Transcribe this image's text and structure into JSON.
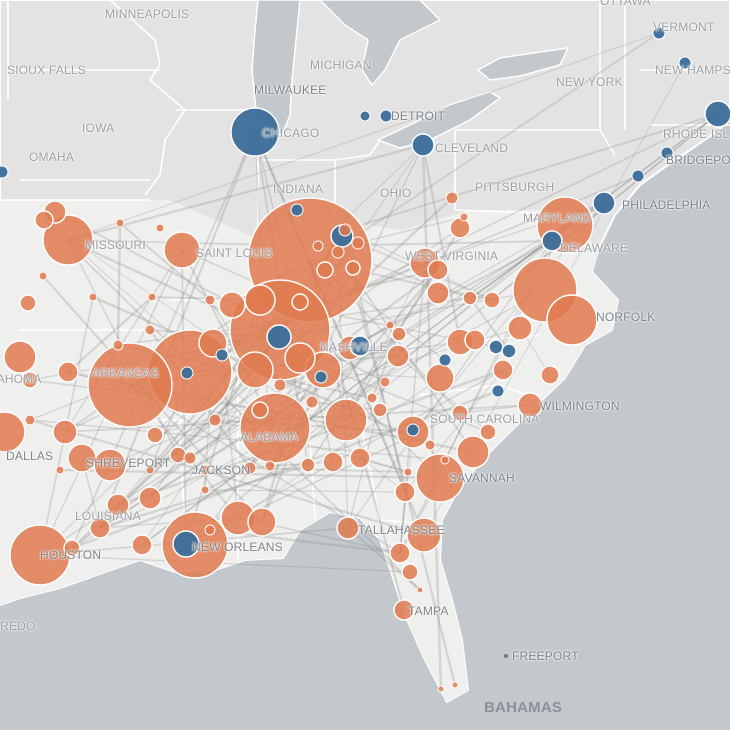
{
  "map": {
    "colors": {
      "water": "#c3c8cd",
      "land_north": "#e3e3e3",
      "land_south": "#efefee",
      "border": "#ffffff",
      "flow_lines": "#8c8c8c",
      "marker_blue": "#3b6e99",
      "marker_orange": "#e07a4f"
    },
    "labels": {
      "ottawa": "OTTAWA",
      "minneapolis": "MINNEAPOLIS",
      "vermont": "VERMONT",
      "new_hampshire": "NEW HAMPSHIRE",
      "sioux_falls": "SIOUX FALLS",
      "michigan": "MICHIGAN",
      "milwaukee": "MILWAUKEE",
      "detroit": "DETROIT",
      "new_york": "NEW YORK",
      "iowa": "IOWA",
      "chicago": "CHICAGO",
      "cleveland": "CLEVELAND",
      "rhode_island": "RHODE ISLAND",
      "omaha": "OMAHA",
      "bridgeport": "BRIDGEPORT",
      "pittsburgh": "PITTSBURGH",
      "indiana": "INDIANA",
      "ohio": "OHIO",
      "philadelphia": "PHILADELPHIA",
      "maryland": "MARYLAND",
      "delaware": "DELAWARE",
      "missouri": "MISSOURI",
      "saint_louis": "SAINT LOUIS",
      "west_virginia": "WEST VIRGINIA",
      "norfolk": "NORFOLK",
      "nashville": "NASHVILLE",
      "oklahoma": "OKLAHOMA",
      "arkansas": "ARKANSAS",
      "wilmington": "WILMINGTON",
      "south_carolina": "SOUTH CAROLINA",
      "alabama": "ALABAMA",
      "dallas": "DALLAS",
      "shreveport": "SHREVEPORT",
      "jackson": "JACKSON",
      "savannah": "SAVANNAH",
      "louisiana": "LOUISIANA",
      "houston": "HOUSTON",
      "new_orleans": "NEW ORLEANS",
      "tallahassee": "TALLAHASSEE",
      "tampa": "TAMPA",
      "laredo": "LAREDO",
      "freeport": "FREEPORT",
      "bahamas": "BAHAMAS"
    }
  }
}
